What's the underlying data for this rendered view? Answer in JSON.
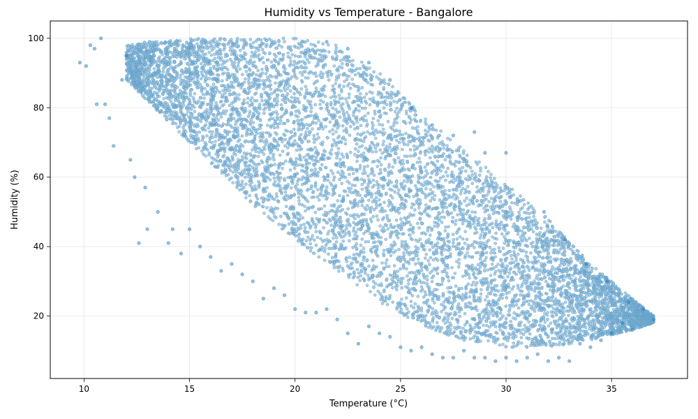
{
  "chart_data": {
    "type": "scatter",
    "title": "Humidity vs Temperature - Bangalore",
    "xlabel": "Temperature (°C)",
    "ylabel": "Humidity (%)",
    "xlim": [
      8.4,
      38.6
    ],
    "ylim": [
      2,
      105
    ],
    "xticks": [
      10,
      15,
      20,
      25,
      30,
      35
    ],
    "yticks": [
      20,
      40,
      60,
      80,
      100
    ],
    "grid": true,
    "point_color": "#1f77b4",
    "point_opacity": 0.45,
    "density_band": {
      "upper_boundary": [
        [
          12,
          98
        ],
        [
          13,
          99
        ],
        [
          15,
          100
        ],
        [
          20,
          100
        ],
        [
          22,
          98
        ],
        [
          24,
          90
        ],
        [
          26,
          78
        ],
        [
          28,
          68
        ],
        [
          30,
          58
        ],
        [
          32,
          48
        ],
        [
          34,
          35
        ],
        [
          36,
          25
        ],
        [
          37,
          20
        ]
      ],
      "lower_boundary": [
        [
          12,
          88
        ],
        [
          13,
          82
        ],
        [
          14,
          76
        ],
        [
          15,
          70
        ],
        [
          16,
          64
        ],
        [
          17,
          58
        ],
        [
          18,
          52
        ],
        [
          20,
          42
        ],
        [
          22,
          33
        ],
        [
          24,
          24
        ],
        [
          26,
          17
        ],
        [
          28,
          13
        ],
        [
          30,
          11
        ],
        [
          32,
          11
        ],
        [
          34,
          13
        ],
        [
          36,
          16
        ],
        [
          37,
          18
        ]
      ]
    },
    "sample_points": [
      [
        9.8,
        93
      ],
      [
        10.1,
        92
      ],
      [
        10.3,
        98
      ],
      [
        10.5,
        97
      ],
      [
        10.8,
        100
      ],
      [
        10.6,
        81
      ],
      [
        11.0,
        81
      ],
      [
        11.2,
        77
      ],
      [
        11.4,
        69
      ],
      [
        11.8,
        88
      ],
      [
        12.0,
        95
      ],
      [
        12.2,
        65
      ],
      [
        12.4,
        60
      ],
      [
        12.6,
        41
      ],
      [
        12.9,
        57
      ],
      [
        13.0,
        45
      ],
      [
        13.5,
        50
      ],
      [
        14.0,
        41
      ],
      [
        14.2,
        45
      ],
      [
        14.6,
        38
      ],
      [
        15.0,
        45
      ],
      [
        15.5,
        40
      ],
      [
        16.0,
        37
      ],
      [
        16.5,
        33
      ],
      [
        17.0,
        35
      ],
      [
        17.5,
        32
      ],
      [
        18.0,
        30
      ],
      [
        18.5,
        25
      ],
      [
        19.0,
        28
      ],
      [
        19.5,
        26
      ],
      [
        20.0,
        22
      ],
      [
        20.5,
        21
      ],
      [
        21.0,
        21
      ],
      [
        21.5,
        22
      ],
      [
        22.0,
        19
      ],
      [
        22.5,
        15
      ],
      [
        23.0,
        12
      ],
      [
        23.5,
        17
      ],
      [
        24.0,
        15
      ],
      [
        24.5,
        14
      ],
      [
        25.0,
        11
      ],
      [
        25.5,
        10
      ],
      [
        26.0,
        11
      ],
      [
        26.5,
        9
      ],
      [
        27.0,
        8
      ],
      [
        27.5,
        8
      ],
      [
        28.0,
        10
      ],
      [
        28.5,
        8
      ],
      [
        29.0,
        8
      ],
      [
        29.5,
        7
      ],
      [
        30.0,
        8
      ],
      [
        30.5,
        7
      ],
      [
        31.0,
        8
      ],
      [
        31.5,
        9
      ],
      [
        32.0,
        7
      ],
      [
        32.5,
        8
      ],
      [
        33.0,
        7
      ],
      [
        33.5,
        12
      ],
      [
        34.0,
        11
      ],
      [
        34.5,
        13
      ],
      [
        35.0,
        15
      ],
      [
        35.5,
        18
      ],
      [
        36.0,
        16
      ],
      [
        36.5,
        22
      ],
      [
        37.0,
        19
      ],
      [
        35.8,
        24
      ],
      [
        34.8,
        30
      ],
      [
        33.8,
        35
      ],
      [
        32.8,
        42
      ],
      [
        31.8,
        50
      ],
      [
        30.0,
        67
      ],
      [
        29.0,
        67
      ],
      [
        28.5,
        73
      ],
      [
        27.5,
        72
      ],
      [
        26.5,
        75
      ],
      [
        25.5,
        80
      ],
      [
        24.5,
        88
      ],
      [
        23.5,
        93
      ],
      [
        22.5,
        97
      ],
      [
        21.5,
        99
      ]
    ]
  }
}
